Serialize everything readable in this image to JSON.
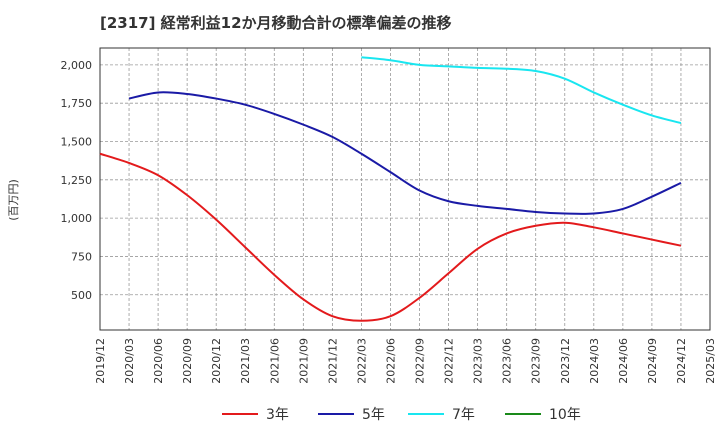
{
  "chart_data": {
    "type": "line",
    "title": "[2317]  経常利益12か月移動合計の標準偏差の推移",
    "ylabel": "(百万円)",
    "xlabel": "",
    "ylim": [
      270,
      2110
    ],
    "yticks": [
      500,
      750,
      1000,
      1250,
      1500,
      1750,
      2000
    ],
    "ytick_labels": [
      "500",
      "750",
      "1,000",
      "1,250",
      "1,500",
      "1,750",
      "2,000"
    ],
    "x_labels": [
      "2019/12",
      "2020/03",
      "2020/06",
      "2020/09",
      "2020/12",
      "2021/03",
      "2021/06",
      "2021/09",
      "2021/12",
      "2022/03",
      "2022/06",
      "2022/09",
      "2022/12",
      "2023/03",
      "2023/06",
      "2023/09",
      "2023/12",
      "2024/03",
      "2024/06",
      "2024/09",
      "2024/12",
      "2025/03"
    ],
    "grid": true,
    "legend_position": "bottom",
    "series": [
      {
        "name": "3年",
        "color": "#e31a1c",
        "start_index": 0,
        "values": [
          1420,
          1360,
          1280,
          1150,
          990,
          810,
          630,
          470,
          360,
          330,
          360,
          480,
          640,
          800,
          900,
          950,
          970,
          940,
          900,
          860,
          820
        ]
      },
      {
        "name": "5年",
        "color": "#1a1aa6",
        "start_index": 1,
        "values": [
          1780,
          1820,
          1810,
          1780,
          1740,
          1680,
          1610,
          1530,
          1420,
          1300,
          1180,
          1110,
          1080,
          1060,
          1040,
          1030,
          1030,
          1060,
          1140,
          1230
        ]
      },
      {
        "name": "7年",
        "color": "#19e6f0",
        "start_index": 9,
        "values": [
          2050,
          2030,
          2000,
          1990,
          1980,
          1975,
          1960,
          1910,
          1820,
          1740,
          1670,
          1620
        ]
      },
      {
        "name": "10年",
        "color": "#1a8a1a",
        "start_index": 0,
        "values": []
      }
    ]
  }
}
